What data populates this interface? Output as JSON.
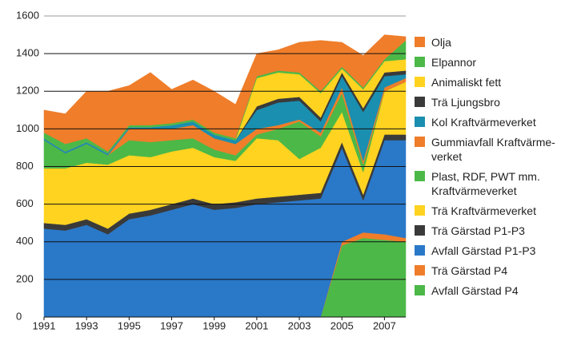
{
  "chart_data": {
    "type": "stacked_area",
    "x": [
      1991,
      1992,
      1993,
      1994,
      1995,
      1996,
      1997,
      1998,
      1999,
      2000,
      2001,
      2002,
      2003,
      2004,
      2005,
      2006,
      2007,
      2008
    ],
    "xlim": [
      1991,
      2008
    ],
    "xticks": [
      1991,
      1993,
      1995,
      1997,
      1999,
      2001,
      2003,
      2005,
      2007
    ],
    "ylim": [
      0,
      1600
    ],
    "yticks": [
      0,
      200,
      400,
      600,
      800,
      1000,
      1200,
      1400,
      1600
    ],
    "grid": true,
    "series": [
      {
        "name": "Olja",
        "color": "#ef7d2a",
        "values": [
          120,
          160,
          250,
          320,
          210,
          280,
          180,
          210,
          220,
          180,
          120,
          110,
          160,
          270,
          130,
          170,
          130,
          20
        ]
      },
      {
        "name": "Elpannor",
        "color": "#4cb848",
        "values": [
          30,
          40,
          20,
          10,
          10,
          10,
          10,
          10,
          10,
          10,
          10,
          10,
          10,
          10,
          10,
          10,
          10,
          100
        ]
      },
      {
        "name": "Animaliskt fett",
        "color": "#ffd320",
        "values": [
          0,
          0,
          0,
          0,
          0,
          0,
          0,
          0,
          0,
          0,
          150,
          140,
          120,
          130,
          20,
          100,
          60,
          60
        ]
      },
      {
        "name": "Trä Ljungsbro",
        "color": "#3a3a3a",
        "values": [
          0,
          0,
          0,
          0,
          0,
          0,
          0,
          0,
          0,
          0,
          20,
          20,
          20,
          20,
          20,
          20,
          20,
          20
        ]
      },
      {
        "name": "Kol Kraftvärmeverket",
        "color": "#1a8fb0",
        "values": [
          10,
          10,
          10,
          10,
          10,
          10,
          20,
          20,
          20,
          20,
          100,
          120,
          100,
          60,
          60,
          260,
          60,
          20
        ]
      },
      {
        "name": "Gummiavfall Kraftvärme-\nverket",
        "color": "#ef7d2a",
        "values": [
          0,
          0,
          0,
          0,
          60,
          70,
          60,
          70,
          60,
          60,
          30,
          20,
          10,
          20,
          30,
          20,
          20,
          20
        ]
      },
      {
        "name": "Plast, RDF, PWT mm.\nKraftvärmeverket",
        "color": "#4cb848",
        "values": [
          150,
          80,
          100,
          50,
          80,
          80,
          60,
          50,
          40,
          30,
          20,
          60,
          200,
          60,
          100,
          40,
          0,
          0
        ]
      },
      {
        "name": "Trä Kraftvärmeverket",
        "color": "#ffd320",
        "values": [
          290,
          300,
          300,
          340,
          310,
          280,
          280,
          270,
          250,
          220,
          320,
          300,
          190,
          240,
          160,
          120,
          230,
          280
        ]
      },
      {
        "name": "Trä Gärstad P1-P3",
        "color": "#3a3a3a",
        "values": [
          30,
          30,
          30,
          30,
          30,
          30,
          30,
          30,
          30,
          30,
          30,
          30,
          30,
          30,
          30,
          30,
          30,
          30
        ]
      },
      {
        "name": "Avfall Gärstad P1-P3",
        "color": "#2a78c8",
        "values": [
          470,
          460,
          490,
          440,
          520,
          540,
          570,
          600,
          570,
          580,
          600,
          610,
          620,
          630,
          500,
          170,
          500,
          520
        ]
      },
      {
        "name": "Trä Gärstad P4",
        "color": "#ef7d2a",
        "values": [
          0,
          0,
          0,
          0,
          0,
          0,
          0,
          0,
          0,
          0,
          0,
          0,
          0,
          0,
          20,
          30,
          30,
          20
        ]
      },
      {
        "name": "Avfall Gärstad P4",
        "color": "#4cb848",
        "values": [
          0,
          0,
          0,
          0,
          0,
          0,
          0,
          0,
          0,
          0,
          0,
          0,
          0,
          0,
          380,
          420,
          410,
          400
        ]
      }
    ]
  }
}
